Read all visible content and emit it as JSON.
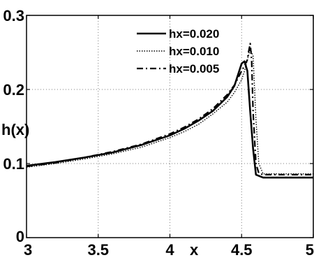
{
  "chart_data": {
    "type": "line",
    "title": "",
    "xlabel": "x",
    "ylabel": "h(x)",
    "xlim": [
      3,
      5
    ],
    "ylim": [
      0,
      0.3
    ],
    "xticks": [
      "3",
      "3.5",
      "4",
      "4.5",
      "5"
    ],
    "yticks": [
      "0",
      "0.1",
      "0.2",
      "0.3"
    ],
    "grid": true,
    "legend_position": "top",
    "series": [
      {
        "name": "hx=0.020",
        "style": "solid",
        "x": [
          3.0,
          3.2,
          3.4,
          3.6,
          3.8,
          4.0,
          4.1,
          4.2,
          4.3,
          4.4,
          4.45,
          4.5,
          4.52,
          4.54,
          4.56,
          4.58,
          4.6,
          4.65,
          4.7,
          4.8,
          4.9,
          5.0
        ],
        "y": [
          0.097,
          0.102,
          0.108,
          0.115,
          0.125,
          0.138,
          0.147,
          0.158,
          0.171,
          0.19,
          0.205,
          0.235,
          0.238,
          0.225,
          0.17,
          0.12,
          0.085,
          0.081,
          0.081,
          0.081,
          0.081,
          0.081
        ]
      },
      {
        "name": "hx=0.010",
        "style": "dotted",
        "x": [
          3.0,
          3.2,
          3.4,
          3.6,
          3.8,
          4.0,
          4.1,
          4.2,
          4.3,
          4.4,
          4.45,
          4.5,
          4.52,
          4.54,
          4.56,
          4.58,
          4.6,
          4.62,
          4.65,
          4.7,
          4.8,
          4.9,
          5.0
        ],
        "y": [
          0.095,
          0.1,
          0.106,
          0.113,
          0.122,
          0.135,
          0.143,
          0.153,
          0.167,
          0.183,
          0.196,
          0.213,
          0.225,
          0.24,
          0.255,
          0.245,
          0.16,
          0.1,
          0.086,
          0.086,
          0.086,
          0.086,
          0.086
        ]
      },
      {
        "name": "hx=0.005",
        "style": "dashdot",
        "x": [
          3.0,
          3.2,
          3.4,
          3.6,
          3.8,
          4.0,
          4.1,
          4.2,
          4.3,
          4.4,
          4.45,
          4.5,
          4.52,
          4.54,
          4.55,
          4.56,
          4.57,
          4.58,
          4.6,
          4.62,
          4.65,
          4.7,
          4.8,
          4.9,
          5.0
        ],
        "y": [
          0.096,
          0.101,
          0.108,
          0.116,
          0.126,
          0.14,
          0.149,
          0.16,
          0.174,
          0.193,
          0.206,
          0.225,
          0.232,
          0.24,
          0.252,
          0.262,
          0.24,
          0.17,
          0.1,
          0.087,
          0.085,
          0.085,
          0.085,
          0.085,
          0.085
        ]
      }
    ]
  }
}
